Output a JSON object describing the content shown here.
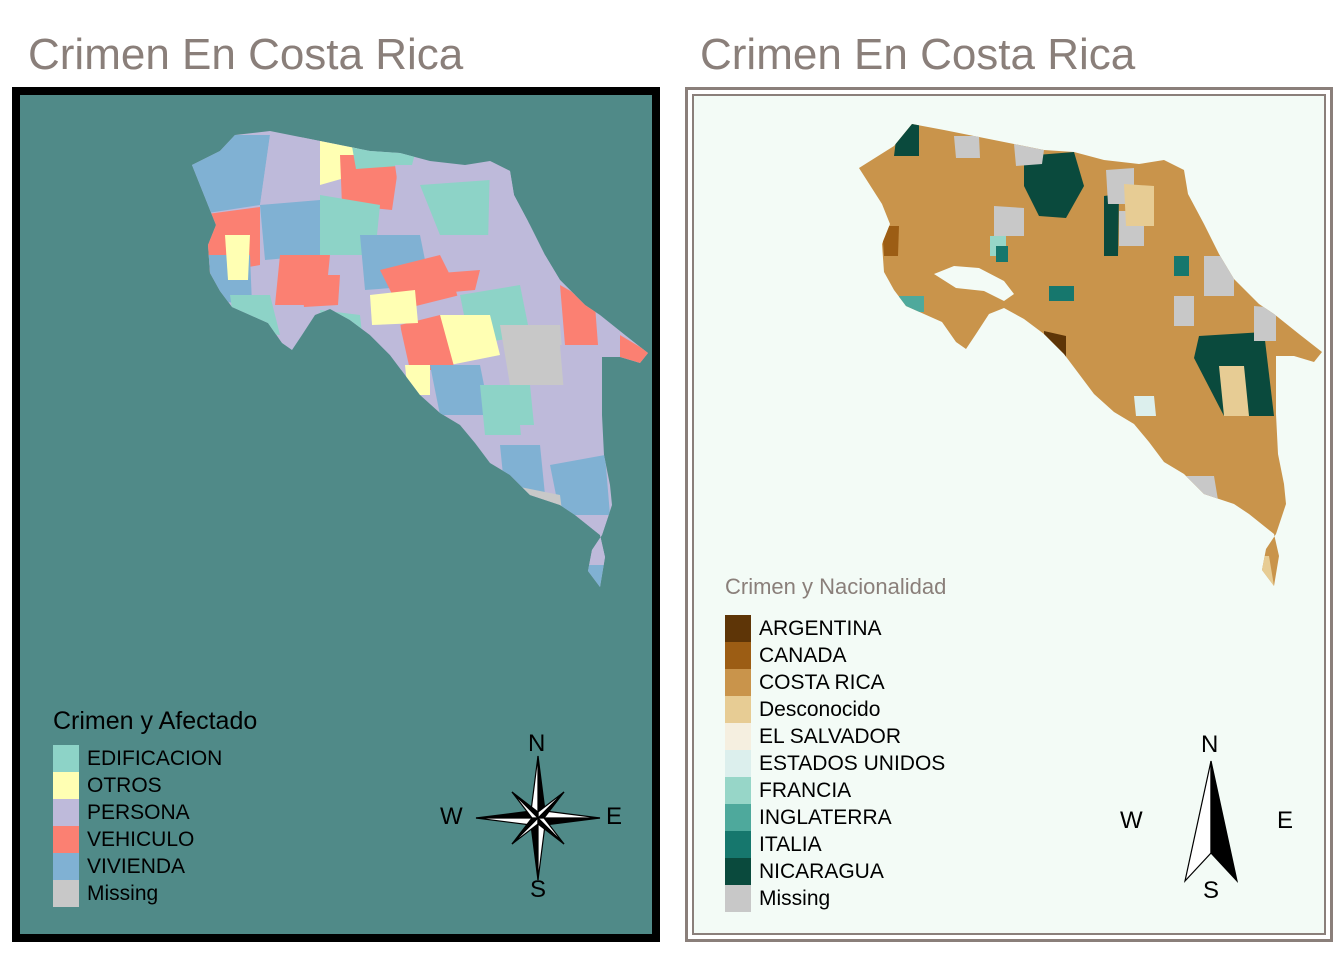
{
  "left_map": {
    "title": "Crimen En Costa Rica",
    "legend_title": "Crimen y Afectado",
    "legend": [
      {
        "label": "EDIFICACION",
        "color": "#8dd3c7"
      },
      {
        "label": "OTROS",
        "color": "#ffffb3"
      },
      {
        "label": "PERSONA",
        "color": "#bebada"
      },
      {
        "label": "VEHICULO",
        "color": "#fb8072"
      },
      {
        "label": "VIVIENDA",
        "color": "#80b1d3"
      },
      {
        "label": "Missing",
        "color": "#c8c8c8"
      }
    ],
    "background": "#508a88",
    "compass": {
      "n": "N",
      "s": "S",
      "e": "E",
      "w": "W",
      "style": "eight-point star"
    }
  },
  "right_map": {
    "title": "Crimen En Costa Rica",
    "legend_title": "Crimen y Nacionalidad",
    "legend": [
      {
        "label": "ARGENTINA",
        "color": "#5e3507"
      },
      {
        "label": "CANADA",
        "color": "#9c5d14"
      },
      {
        "label": "COSTA RICA",
        "color": "#c9944b"
      },
      {
        "label": "Desconocido",
        "color": "#e7cc94"
      },
      {
        "label": "EL SALVADOR",
        "color": "#f5efe0"
      },
      {
        "label": "ESTADOS UNIDOS",
        "color": "#dcefed"
      },
      {
        "label": "FRANCIA",
        "color": "#97d6c8"
      },
      {
        "label": "INGLATERRA",
        "color": "#4ea99c"
      },
      {
        "label": "ITALIA",
        "color": "#16776d"
      },
      {
        "label": "NICARAGUA",
        "color": "#0a4a3d"
      },
      {
        "label": "Missing",
        "color": "#c8c8c8"
      }
    ],
    "background": "#f3fbf6",
    "compass": {
      "n": "N",
      "s": "S",
      "e": "E",
      "w": "W",
      "style": "north arrow"
    }
  }
}
